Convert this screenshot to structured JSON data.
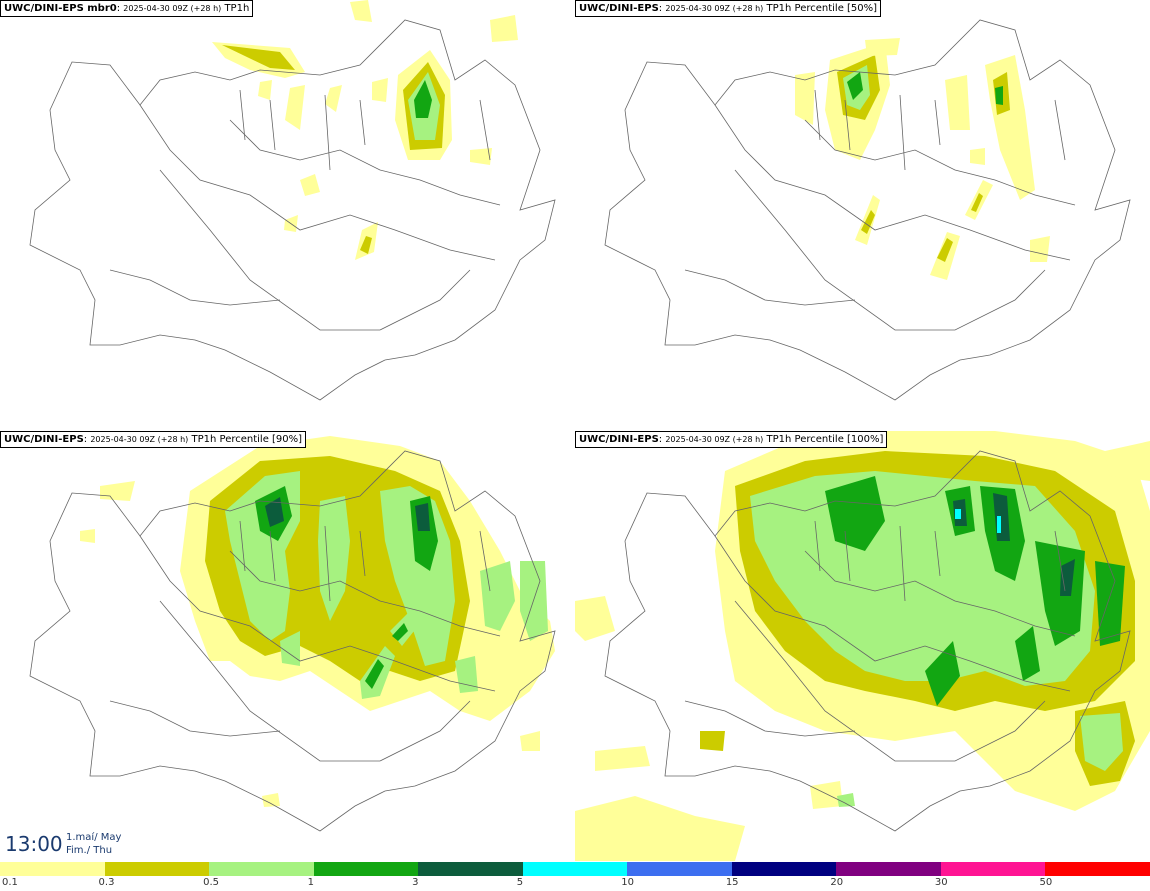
{
  "panels": [
    {
      "model": "UWC/DINI-EPS mbr0",
      "sep": ": ",
      "run": "2025-04-30 09Z (+28 h)",
      "field": "TP1h"
    },
    {
      "model": "UWC/DINI-EPS",
      "sep": ": ",
      "run": "2025-04-30 09Z (+28 h)",
      "field": "TP1h Percentile [50%]"
    },
    {
      "model": "UWC/DINI-EPS",
      "sep": ": ",
      "run": "2025-04-30 09Z (+28 h)",
      "field": "TP1h Percentile [90%]"
    },
    {
      "model": "UWC/DINI-EPS",
      "sep": ": ",
      "run": "2025-04-30 09Z (+28 h)",
      "field": "TP1h Percentile [100%]"
    }
  ],
  "clock": {
    "time": "13:00",
    "date_line1": "1.maí/ May",
    "date_line2": "Fim./ Thu"
  },
  "legend": {
    "colors": [
      "#ffff99",
      "#cccc00",
      "#a6f280",
      "#12a612",
      "#0c5c3c",
      "#00ffff",
      "#3c6ef0",
      "#000080",
      "#800080",
      "#ff1493",
      "#ff0000"
    ],
    "labels": [
      "0.1",
      "0.3",
      "0.5",
      "1",
      "3",
      "5",
      "10",
      "15",
      "20",
      "30",
      "50"
    ]
  }
}
